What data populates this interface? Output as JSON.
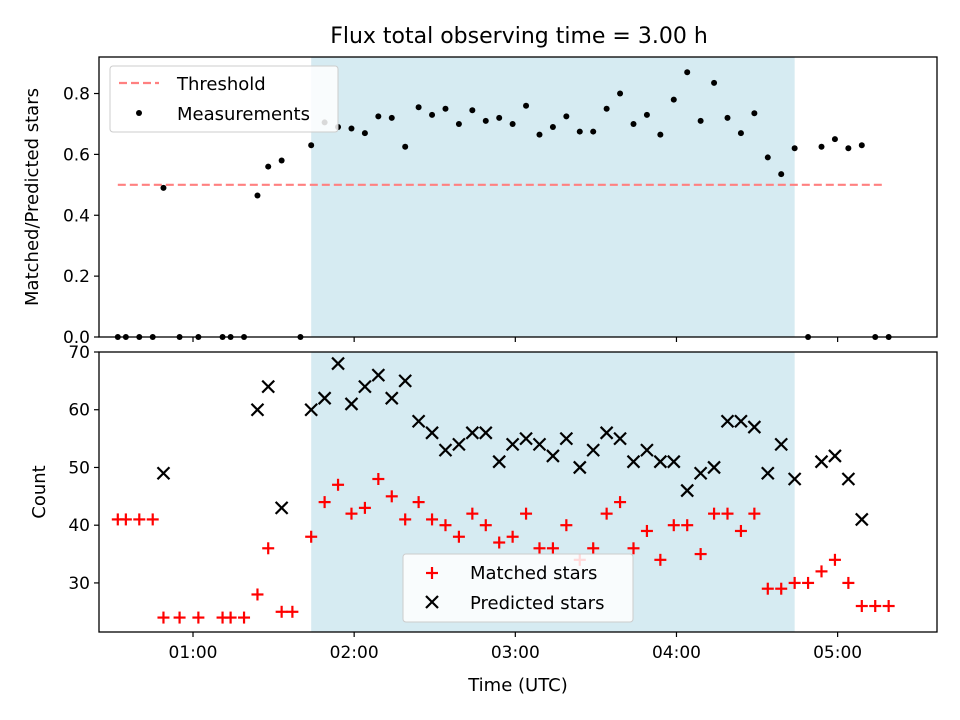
{
  "title": "Flux total observing time = 3.00 h",
  "colors": {
    "band": "#add8e6",
    "threshold": "#ff8080",
    "measurement": "#000000",
    "matched": "#ff0000",
    "predicted": "#000000"
  },
  "chart_data": [
    {
      "type": "scatter",
      "ylabel": "Matched/Predicted stars",
      "xlim": [
        "00:25",
        "05:37"
      ],
      "ylim": [
        0,
        0.92
      ],
      "yticks": [
        "0.0",
        "0.2",
        "0.4",
        "0.6",
        "0.8"
      ],
      "x_ticks": [
        "01:00",
        "02:00",
        "03:00",
        "04:00",
        "05:00"
      ],
      "grid": false,
      "legend_position": "upper left",
      "band": {
        "start": "01:44",
        "end": "04:44"
      },
      "threshold": {
        "name": "Threshold",
        "value": 0.5,
        "x_start": "00:32",
        "x_end": "05:17"
      },
      "series": [
        {
          "name": "Measurements",
          "marker": "dot",
          "points": [
            [
              "00:32",
              0.0
            ],
            [
              "00:35",
              0.0
            ],
            [
              "00:40",
              0.0
            ],
            [
              "00:45",
              0.0
            ],
            [
              "00:49",
              0.49
            ],
            [
              "00:55",
              0.0
            ],
            [
              "01:02",
              0.0
            ],
            [
              "01:11",
              0.0
            ],
            [
              "01:14",
              0.0
            ],
            [
              "01:19",
              0.0
            ],
            [
              "01:24",
              0.465
            ],
            [
              "01:28",
              0.56
            ],
            [
              "01:33",
              0.58
            ],
            [
              "01:40",
              0.0
            ],
            [
              "01:44",
              0.63
            ],
            [
              "01:49",
              0.705
            ],
            [
              "01:54",
              0.69
            ],
            [
              "01:59",
              0.685
            ],
            [
              "02:04",
              0.67
            ],
            [
              "02:09",
              0.725
            ],
            [
              "02:14",
              0.72
            ],
            [
              "02:19",
              0.625
            ],
            [
              "02:24",
              0.755
            ],
            [
              "02:29",
              0.73
            ],
            [
              "02:34",
              0.75
            ],
            [
              "02:39",
              0.7
            ],
            [
              "02:44",
              0.745
            ],
            [
              "02:49",
              0.71
            ],
            [
              "02:54",
              0.72
            ],
            [
              "02:59",
              0.7
            ],
            [
              "03:04",
              0.76
            ],
            [
              "03:09",
              0.665
            ],
            [
              "03:14",
              0.69
            ],
            [
              "03:19",
              0.725
            ],
            [
              "03:24",
              0.675
            ],
            [
              "03:29",
              0.675
            ],
            [
              "03:34",
              0.75
            ],
            [
              "03:39",
              0.8
            ],
            [
              "03:44",
              0.7
            ],
            [
              "03:49",
              0.73
            ],
            [
              "03:54",
              0.665
            ],
            [
              "03:59",
              0.78
            ],
            [
              "04:04",
              0.87
            ],
            [
              "04:09",
              0.71
            ],
            [
              "04:14",
              0.835
            ],
            [
              "04:19",
              0.72
            ],
            [
              "04:24",
              0.67
            ],
            [
              "04:29",
              0.735
            ],
            [
              "04:34",
              0.59
            ],
            [
              "04:39",
              0.535
            ],
            [
              "04:44",
              0.62
            ],
            [
              "04:49",
              0.0
            ],
            [
              "04:54",
              0.625
            ],
            [
              "04:59",
              0.65
            ],
            [
              "05:04",
              0.62
            ],
            [
              "05:09",
              0.63
            ],
            [
              "05:14",
              0.0
            ],
            [
              "05:19",
              0.0
            ]
          ]
        }
      ]
    },
    {
      "type": "scatter",
      "xlabel": "Time (UTC)",
      "ylabel": "Count",
      "xlim": [
        "00:25",
        "05:37"
      ],
      "ylim": [
        21.5,
        70
      ],
      "yticks": [
        "30",
        "40",
        "50",
        "60",
        "70"
      ],
      "x_ticks": [
        "01:00",
        "02:00",
        "03:00",
        "04:00",
        "05:00"
      ],
      "grid": false,
      "legend_position": "lower center",
      "band": {
        "start": "01:44",
        "end": "04:44"
      },
      "series": [
        {
          "name": "Matched stars",
          "marker": "plus",
          "points": [
            [
              "00:32",
              41
            ],
            [
              "00:35",
              41
            ],
            [
              "00:40",
              41
            ],
            [
              "00:45",
              41
            ],
            [
              "00:49",
              24
            ],
            [
              "00:55",
              24
            ],
            [
              "01:02",
              24
            ],
            [
              "01:11",
              24
            ],
            [
              "01:14",
              24
            ],
            [
              "01:19",
              24
            ],
            [
              "01:24",
              28
            ],
            [
              "01:28",
              36
            ],
            [
              "01:33",
              25
            ],
            [
              "01:37",
              25
            ],
            [
              "01:44",
              38
            ],
            [
              "01:49",
              44
            ],
            [
              "01:54",
              47
            ],
            [
              "01:59",
              42
            ],
            [
              "02:04",
              43
            ],
            [
              "02:09",
              48
            ],
            [
              "02:14",
              45
            ],
            [
              "02:19",
              41
            ],
            [
              "02:24",
              44
            ],
            [
              "02:29",
              41
            ],
            [
              "02:34",
              40
            ],
            [
              "02:39",
              38
            ],
            [
              "02:44",
              42
            ],
            [
              "02:49",
              40
            ],
            [
              "02:54",
              37
            ],
            [
              "02:59",
              38
            ],
            [
              "03:04",
              42
            ],
            [
              "03:09",
              36
            ],
            [
              "03:14",
              36
            ],
            [
              "03:19",
              40
            ],
            [
              "03:24",
              34
            ],
            [
              "03:29",
              36
            ],
            [
              "03:34",
              42
            ],
            [
              "03:39",
              44
            ],
            [
              "03:44",
              36
            ],
            [
              "03:49",
              39
            ],
            [
              "03:54",
              34
            ],
            [
              "03:59",
              40
            ],
            [
              "04:04",
              40
            ],
            [
              "04:09",
              35
            ],
            [
              "04:14",
              42
            ],
            [
              "04:19",
              42
            ],
            [
              "04:24",
              39
            ],
            [
              "04:29",
              42
            ],
            [
              "04:34",
              29
            ],
            [
              "04:39",
              29
            ],
            [
              "04:44",
              30
            ],
            [
              "04:49",
              30
            ],
            [
              "04:54",
              32
            ],
            [
              "04:59",
              34
            ],
            [
              "05:04",
              30
            ],
            [
              "05:09",
              26
            ],
            [
              "05:14",
              26
            ],
            [
              "05:19",
              26
            ]
          ]
        },
        {
          "name": "Predicted stars",
          "marker": "x",
          "points": [
            [
              "00:49",
              49
            ],
            [
              "01:24",
              60
            ],
            [
              "01:28",
              64
            ],
            [
              "01:33",
              43
            ],
            [
              "01:44",
              60
            ],
            [
              "01:49",
              62
            ],
            [
              "01:54",
              68
            ],
            [
              "01:59",
              61
            ],
            [
              "02:04",
              64
            ],
            [
              "02:09",
              66
            ],
            [
              "02:14",
              62
            ],
            [
              "02:19",
              65
            ],
            [
              "02:24",
              58
            ],
            [
              "02:29",
              56
            ],
            [
              "02:34",
              53
            ],
            [
              "02:39",
              54
            ],
            [
              "02:44",
              56
            ],
            [
              "02:49",
              56
            ],
            [
              "02:54",
              51
            ],
            [
              "02:59",
              54
            ],
            [
              "03:04",
              55
            ],
            [
              "03:09",
              54
            ],
            [
              "03:14",
              52
            ],
            [
              "03:19",
              55
            ],
            [
              "03:24",
              50
            ],
            [
              "03:29",
              53
            ],
            [
              "03:34",
              56
            ],
            [
              "03:39",
              55
            ],
            [
              "03:44",
              51
            ],
            [
              "03:49",
              53
            ],
            [
              "03:54",
              51
            ],
            [
              "03:59",
              51
            ],
            [
              "04:04",
              46
            ],
            [
              "04:09",
              49
            ],
            [
              "04:14",
              50
            ],
            [
              "04:19",
              58
            ],
            [
              "04:24",
              58
            ],
            [
              "04:29",
              57
            ],
            [
              "04:34",
              49
            ],
            [
              "04:39",
              54
            ],
            [
              "04:44",
              48
            ],
            [
              "04:54",
              51
            ],
            [
              "04:59",
              52
            ],
            [
              "05:04",
              48
            ],
            [
              "05:09",
              41
            ]
          ]
        }
      ]
    }
  ]
}
